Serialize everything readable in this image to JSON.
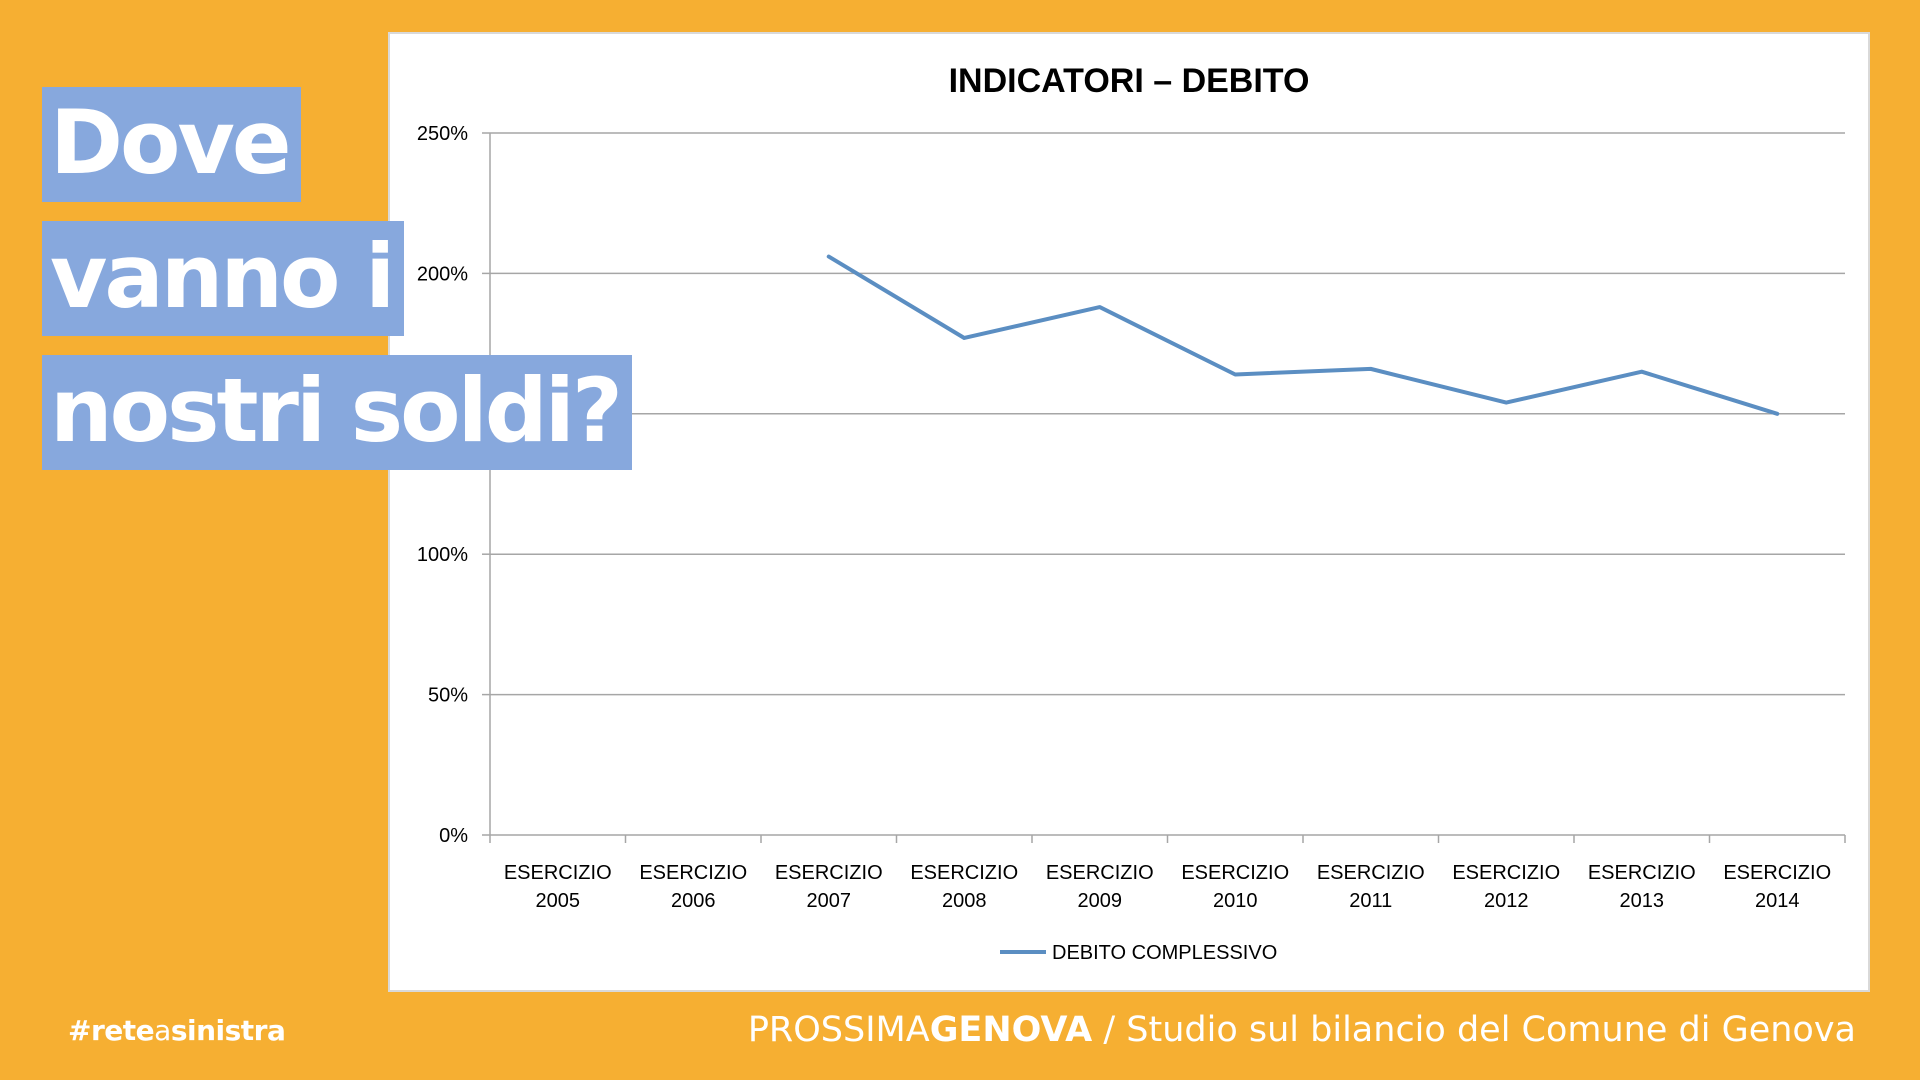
{
  "headline": {
    "lines": [
      "Dove",
      "vanno i",
      "nostri soldi?"
    ]
  },
  "hashtag": {
    "part1": "#rete",
    "part2": "a",
    "part3": "sinistra"
  },
  "footer": {
    "brand_light": "PROSSIMA",
    "brand_bold": "GENOVA",
    "subtitle": " / Studio sul bilancio del Comune di Genova"
  },
  "colors": {
    "background": "#F6AF32",
    "highlight": "#87A8DD",
    "line": "#5B8EC2"
  },
  "chart_data": {
    "type": "line",
    "title": "INDICATORI – DEBITO",
    "categories": [
      [
        "ESERCIZIO",
        "2005"
      ],
      [
        "ESERCIZIO",
        "2006"
      ],
      [
        "ESERCIZIO",
        "2007"
      ],
      [
        "ESERCIZIO",
        "2008"
      ],
      [
        "ESERCIZIO",
        "2009"
      ],
      [
        "ESERCIZIO",
        "2010"
      ],
      [
        "ESERCIZIO",
        "2011"
      ],
      [
        "ESERCIZIO",
        "2012"
      ],
      [
        "ESERCIZIO",
        "2013"
      ],
      [
        "ESERCIZIO",
        "2014"
      ]
    ],
    "series": [
      {
        "name": "DEBITO COMPLESSIVO",
        "values": [
          null,
          null,
          206,
          177,
          188,
          164,
          166,
          154,
          165,
          150
        ]
      }
    ],
    "yticks": [
      "0%",
      "50%",
      "100%",
      "",
      "200%",
      "250%"
    ],
    "ylim": [
      0,
      250
    ],
    "ystep": 50,
    "grid": true,
    "legend": "bottom"
  }
}
